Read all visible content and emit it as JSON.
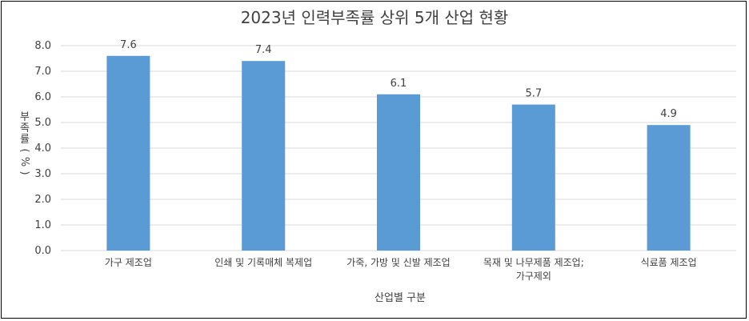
{
  "chart_data": {
    "type": "bar",
    "title": "2023년 인력부족률 상위 5개 산업 현황",
    "xlabel": "산업별 구분",
    "ylabel_chars": [
      "부",
      "족",
      "률",
      "(",
      "%",
      ")"
    ],
    "categories": [
      [
        "가구 제조업"
      ],
      [
        "인쇄 및 기록매체 복제업"
      ],
      [
        "가죽, 가방 및 신발 제조업"
      ],
      [
        "목재 및 나무제품 제조업;",
        "가구제외"
      ],
      [
        "식료품 제조업"
      ]
    ],
    "values": [
      7.6,
      7.4,
      6.1,
      5.7,
      4.9
    ],
    "data_labels": [
      "7.6",
      "7.4",
      "6.1",
      "5.7",
      "4.9"
    ],
    "ylim": [
      0,
      8
    ],
    "yticks": [
      "0.0",
      "1.0",
      "2.0",
      "3.0",
      "4.0",
      "5.0",
      "6.0",
      "7.0",
      "8.0"
    ],
    "grid": true,
    "bar_color": "#5b9bd5",
    "grid_color": "#d9d9d9"
  }
}
